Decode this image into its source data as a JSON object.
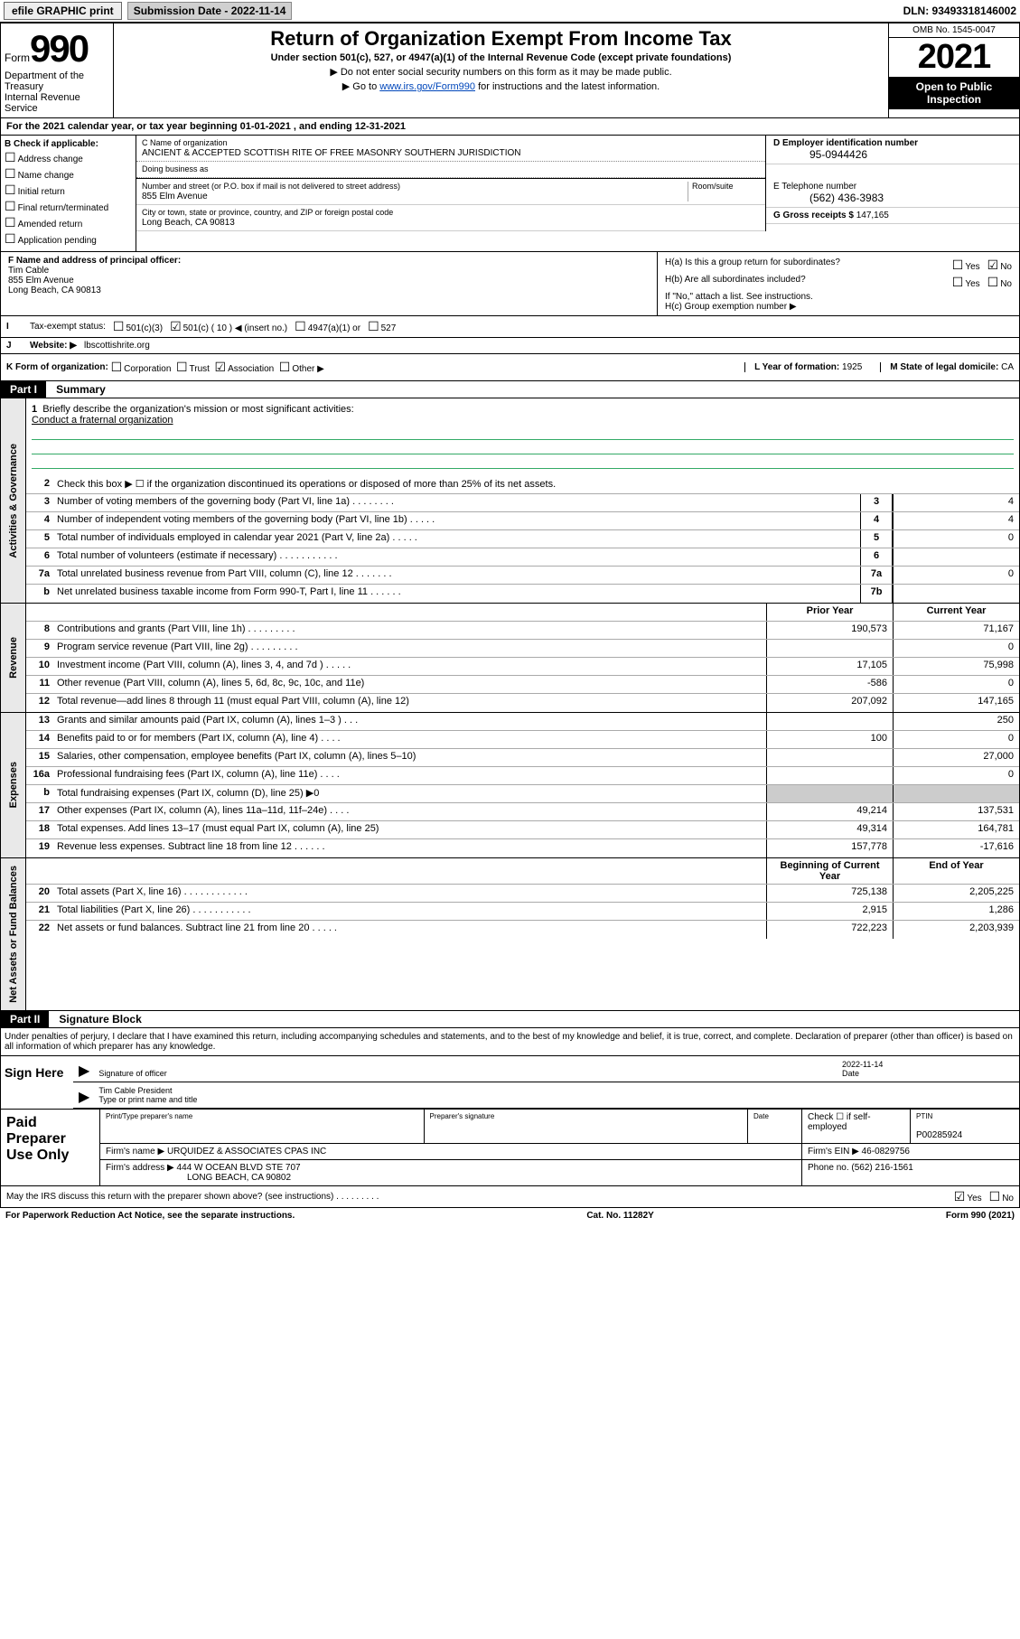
{
  "topbar": {
    "efile": "efile GRAPHIC print",
    "submission_label": "Submission Date - 2022-11-14",
    "dln": "DLN: 93493318146002"
  },
  "header": {
    "form_word": "Form",
    "form_num": "990",
    "title": "Return of Organization Exempt From Income Tax",
    "under": "Under section 501(c), 527, or 4947(a)(1) of the Internal Revenue Code (except private foundations)",
    "note1": "▶ Do not enter social security numbers on this form as it may be made public.",
    "note2_pre": "▶ Go to ",
    "note2_link": "www.irs.gov/Form990",
    "note2_post": " for instructions and the latest information.",
    "dept": "Department of the Treasury",
    "irs": "Internal Revenue Service",
    "omb": "OMB No. 1545-0047",
    "year": "2021",
    "open": "Open to Public Inspection"
  },
  "lineA": "For the 2021 calendar year, or tax year beginning 01-01-2021   , and ending 12-31-2021",
  "colB": {
    "label": "B Check if applicable:",
    "items": [
      "Address change",
      "Name change",
      "Initial return",
      "Final return/terminated",
      "Amended return",
      "Application pending"
    ]
  },
  "colC": {
    "name_lab": "C Name of organization",
    "name": "ANCIENT & ACCEPTED SCOTTISH RITE OF FREE MASONRY SOUTHERN JURISDICTION",
    "dba_lab": "Doing business as",
    "addr_lab": "Number and street (or P.O. box if mail is not delivered to street address)",
    "room_lab": "Room/suite",
    "addr": "855 Elm Avenue",
    "city_lab": "City or town, state or province, country, and ZIP or foreign postal code",
    "city": "Long Beach, CA  90813"
  },
  "colD": {
    "d_lab": "D Employer identification number",
    "d_val": "95-0944426",
    "e_lab": "E Telephone number",
    "e_val": "(562) 436-3983",
    "g_lab": "G Gross receipts $",
    "g_val": "147,165"
  },
  "F": {
    "label": "F Name and address of principal officer:",
    "name": "Tim Cable",
    "addr1": "855 Elm Avenue",
    "addr2": "Long Beach, CA  90813"
  },
  "H": {
    "ha": "H(a)  Is this a group return for subordinates?",
    "hb": "H(b)  Are all subordinates included?",
    "hb_note": "If \"No,\" attach a list. See instructions.",
    "hc": "H(c)  Group exemption number ▶",
    "yes": "Yes",
    "no": "No"
  },
  "I": {
    "label": "Tax-exempt status:",
    "o1": "501(c)(3)",
    "o2": "501(c) ( 10 ) ◀ (insert no.)",
    "o3": "4947(a)(1) or",
    "o4": "527"
  },
  "J": {
    "label": "Website: ▶",
    "val": "lbscottishrite.org"
  },
  "K": {
    "label": "K Form of organization:",
    "opts": [
      "Corporation",
      "Trust",
      "Association",
      "Other ▶"
    ],
    "L_lab": "L Year of formation:",
    "L_val": "1925",
    "M_lab": "M State of legal domicile:",
    "M_val": "CA"
  },
  "part1": {
    "hdr": "Part I",
    "title": "Summary",
    "brief_lab": "Briefly describe the organization's mission or most significant activities:",
    "brief_txt": "Conduct a fraternal organization",
    "line2": "Check this box ▶ ☐  if the organization discontinued its operations or disposed of more than 25% of its net assets.",
    "ag_label": "Activities & Governance",
    "rev_label": "Revenue",
    "exp_label": "Expenses",
    "nab_label": "Net Assets or Fund Balances",
    "prior_hdr": "Prior Year",
    "curr_hdr": "Current Year",
    "begin_hdr": "Beginning of Current Year",
    "end_hdr": "End of Year",
    "rows_ag": [
      {
        "n": "3",
        "txt": "Number of voting members of the governing body (Part VI, line 1a)   .    .    .    .    .    .    .    .",
        "box": "3",
        "val": "4"
      },
      {
        "n": "4",
        "txt": "Number of independent voting members of the governing body (Part VI, line 1b)   .    .    .    .    .",
        "box": "4",
        "val": "4"
      },
      {
        "n": "5",
        "txt": "Total number of individuals employed in calendar year 2021 (Part V, line 2a)   .    .    .    .    .",
        "box": "5",
        "val": "0"
      },
      {
        "n": "6",
        "txt": "Total number of volunteers (estimate if necessary)   .    .    .    .    .    .    .    .    .    .    .",
        "box": "6",
        "val": ""
      },
      {
        "n": "7a",
        "txt": "Total unrelated business revenue from Part VIII, column (C), line 12   .    .    .    .    .    .    .",
        "box": "7a",
        "val": "0"
      },
      {
        "n": "b",
        "txt": "Net unrelated business taxable income from Form 990-T, Part I, line 11   .    .    .    .    .    .",
        "box": "7b",
        "val": ""
      }
    ],
    "rows_rev": [
      {
        "n": "8",
        "txt": "Contributions and grants (Part VIII, line 1h)   .    .    .    .    .    .    .    .    .",
        "p": "190,573",
        "c": "71,167"
      },
      {
        "n": "9",
        "txt": "Program service revenue (Part VIII, line 2g)   .    .    .    .    .    .    .    .    .",
        "p": "",
        "c": "0"
      },
      {
        "n": "10",
        "txt": "Investment income (Part VIII, column (A), lines 3, 4, and 7d )   .    .    .    .    .",
        "p": "17,105",
        "c": "75,998"
      },
      {
        "n": "11",
        "txt": "Other revenue (Part VIII, column (A), lines 5, 6d, 8c, 9c, 10c, and 11e)",
        "p": "-586",
        "c": "0"
      },
      {
        "n": "12",
        "txt": "Total revenue—add lines 8 through 11 (must equal Part VIII, column (A), line 12)",
        "p": "207,092",
        "c": "147,165"
      }
    ],
    "rows_exp": [
      {
        "n": "13",
        "txt": "Grants and similar amounts paid (Part IX, column (A), lines 1–3 )   .    .    .",
        "p": "",
        "c": "250"
      },
      {
        "n": "14",
        "txt": "Benefits paid to or for members (Part IX, column (A), line 4)   .    .    .    .",
        "p": "100",
        "c": "0"
      },
      {
        "n": "15",
        "txt": "Salaries, other compensation, employee benefits (Part IX, column (A), lines 5–10)",
        "p": "",
        "c": "27,000"
      },
      {
        "n": "16a",
        "txt": "Professional fundraising fees (Part IX, column (A), line 11e)   .    .    .    .",
        "p": "",
        "c": "0"
      },
      {
        "n": "b",
        "txt": "Total fundraising expenses (Part IX, column (D), line 25) ▶0",
        "p": "grey",
        "c": "grey"
      },
      {
        "n": "17",
        "txt": "Other expenses (Part IX, column (A), lines 11a–11d, 11f–24e)   .    .    .    .",
        "p": "49,214",
        "c": "137,531"
      },
      {
        "n": "18",
        "txt": "Total expenses. Add lines 13–17 (must equal Part IX, column (A), line 25)",
        "p": "49,314",
        "c": "164,781"
      },
      {
        "n": "19",
        "txt": "Revenue less expenses. Subtract line 18 from line 12   .    .    .    .    .    .",
        "p": "157,778",
        "c": "-17,616"
      }
    ],
    "rows_nab": [
      {
        "n": "20",
        "txt": "Total assets (Part X, line 16)   .    .    .    .    .    .    .    .    .    .    .    .",
        "p": "725,138",
        "c": "2,205,225"
      },
      {
        "n": "21",
        "txt": "Total liabilities (Part X, line 26)   .    .    .    .    .    .    .    .    .    .    .",
        "p": "2,915",
        "c": "1,286"
      },
      {
        "n": "22",
        "txt": "Net assets or fund balances. Subtract line 21 from line 20   .    .    .    .    .",
        "p": "722,223",
        "c": "2,203,939"
      }
    ]
  },
  "part2": {
    "hdr": "Part II",
    "title": "Signature Block",
    "perjury": "Under penalties of perjury, I declare that I have examined this return, including accompanying schedules and statements, and to the best of my knowledge and belief, it is true, correct, and complete. Declaration of preparer (other than officer) is based on all information of which preparer has any knowledge.",
    "sign_here": "Sign Here",
    "sig_officer": "Signature of officer",
    "date": "Date",
    "date_val": "2022-11-14",
    "name_title": "Tim Cable  President",
    "name_lab": "Type or print name and title",
    "paid": "Paid Preparer Use Only",
    "prep_name_lab": "Print/Type preparer's name",
    "prep_sig_lab": "Preparer's signature",
    "date_lab": "Date",
    "check_if": "Check ☐ if self-employed",
    "ptin_lab": "PTIN",
    "ptin": "P00285924",
    "firm_name_lab": "Firm's name    ▶",
    "firm_name": "URQUIDEZ & ASSOCIATES CPAS INC",
    "firm_ein_lab": "Firm's EIN ▶",
    "firm_ein": "46-0829756",
    "firm_addr_lab": "Firm's address ▶",
    "firm_addr1": "444 W OCEAN BLVD STE 707",
    "firm_addr2": "LONG BEACH, CA  90802",
    "phone_lab": "Phone no.",
    "phone": "(562) 216-1561",
    "discuss": "May the IRS discuss this return with the preparer shown above? (see instructions)   .    .    .    .    .    .    .    .    .",
    "pra": "For Paperwork Reduction Act Notice, see the separate instructions.",
    "cat": "Cat. No. 11282Y",
    "formno": "Form 990 (2021)"
  }
}
